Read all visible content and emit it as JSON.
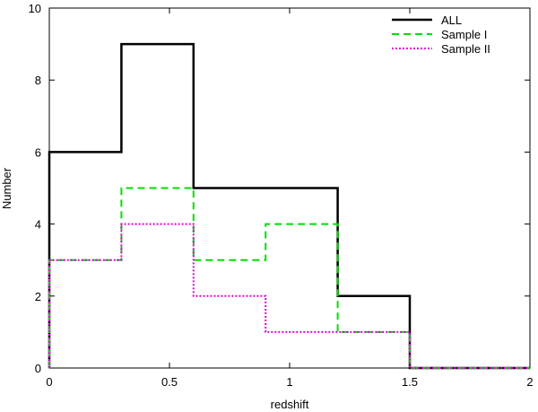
{
  "chart_data": {
    "type": "line",
    "subtype": "step-histogram",
    "title": "",
    "xlabel": "redshift",
    "ylabel": "Number",
    "xlim": [
      0,
      2
    ],
    "ylim": [
      0,
      10
    ],
    "x_ticks": [
      "0",
      "0.5",
      "1",
      "1.5",
      "2"
    ],
    "y_ticks": [
      "0",
      "2",
      "4",
      "6",
      "8",
      "10"
    ],
    "legend_position": "top-right",
    "grid": false,
    "bin_edges": [
      0,
      0.3,
      0.6,
      0.9,
      1.2,
      1.5,
      2.0
    ],
    "series": [
      {
        "name": "ALL",
        "values": [
          6,
          9,
          5,
          5,
          2,
          0
        ],
        "color": "#000000",
        "style": "solid"
      },
      {
        "name": "Sample I",
        "values": [
          3,
          5,
          3,
          4,
          1,
          0
        ],
        "color": "#00e000",
        "style": "dashed"
      },
      {
        "name": "Sample II",
        "values": [
          3,
          4,
          2,
          1,
          1,
          0
        ],
        "color": "#e000e0",
        "style": "dotted"
      }
    ]
  }
}
